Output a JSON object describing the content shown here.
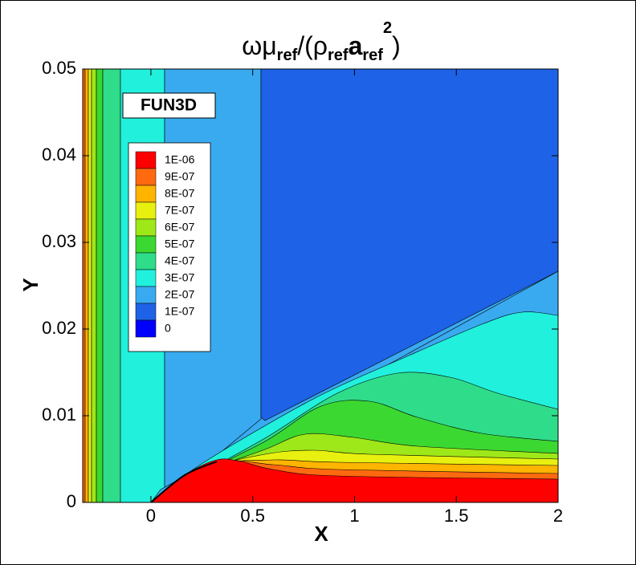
{
  "chart_data": {
    "type": "contour",
    "title": [
      "ωμ",
      "ref",
      "/(ρ",
      "ref",
      "a",
      "ref",
      "2",
      ")"
    ],
    "annotation": "FUN3D",
    "x_label": "X",
    "y_label": "Y",
    "xlim": [
      -0.335,
      2
    ],
    "ylim": [
      0,
      0.05
    ],
    "xticks": [
      0,
      0.5,
      1,
      1.5,
      2
    ],
    "yticks": [
      0,
      0.01,
      0.02,
      0.03,
      0.04,
      0.05
    ],
    "levels": [
      {
        "value": 1e-06,
        "label": "1E-06"
      },
      {
        "value": 9e-07,
        "label": "9E-07"
      },
      {
        "value": 8e-07,
        "label": "8E-07"
      },
      {
        "value": 7e-07,
        "label": "7E-07"
      },
      {
        "value": 6e-07,
        "label": "6E-07"
      },
      {
        "value": 5e-07,
        "label": "5E-07"
      },
      {
        "value": 4e-07,
        "label": "4E-07"
      },
      {
        "value": 3e-07,
        "label": "3E-07"
      },
      {
        "value": 2e-07,
        "label": "2E-07"
      },
      {
        "value": 1e-07,
        "label": "1E-07"
      },
      {
        "value": 0,
        "label": "0"
      }
    ],
    "level_colors": [
      "#ff0000",
      "#ff6a10",
      "#ffb400",
      "#e8f010",
      "#9ee81a",
      "#3cd832",
      "#2edc8a",
      "#20f0dc",
      "#3aaaf0",
      "#1e62e8",
      "#0000ff"
    ]
  }
}
